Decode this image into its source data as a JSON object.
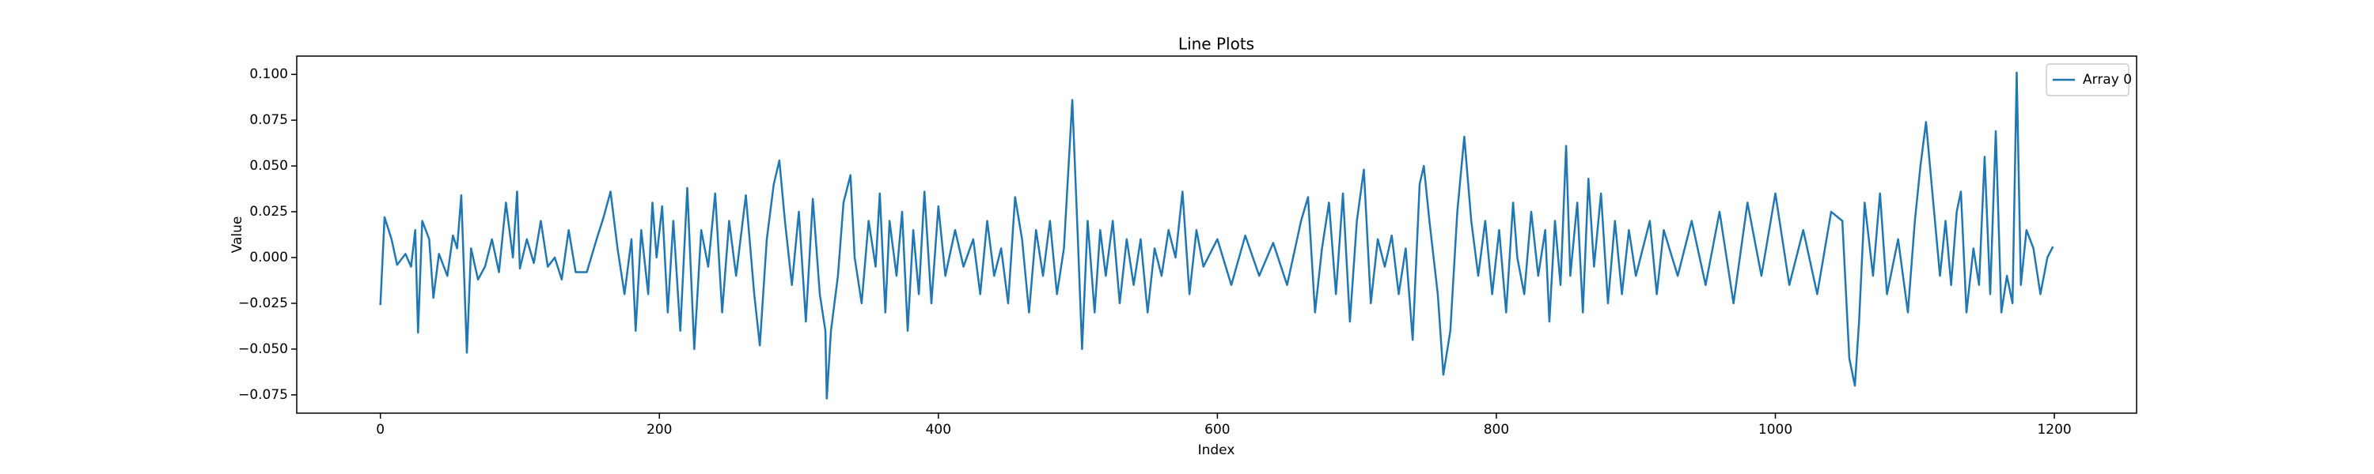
{
  "chart_data": {
    "type": "line",
    "title": "Line Plots",
    "xlabel": "Index",
    "ylabel": "Value",
    "x": [
      0,
      3,
      8,
      12,
      18,
      22,
      25,
      27,
      30,
      35,
      38,
      42,
      48,
      52,
      55,
      58,
      62,
      65,
      70,
      75,
      80,
      85,
      90,
      95,
      98,
      100,
      105,
      110,
      115,
      120,
      125,
      130,
      135,
      140,
      148,
      155,
      160,
      165,
      170,
      175,
      180,
      183,
      187,
      192,
      195,
      198,
      202,
      206,
      210,
      215,
      220,
      225,
      230,
      235,
      240,
      245,
      250,
      255,
      262,
      268,
      272,
      277,
      282,
      286,
      290,
      295,
      300,
      305,
      310,
      315,
      319,
      320,
      323,
      328,
      332,
      337,
      340,
      345,
      350,
      355,
      358,
      362,
      365,
      370,
      374,
      378,
      382,
      386,
      390,
      395,
      400,
      405,
      412,
      418,
      425,
      430,
      435,
      440,
      445,
      450,
      455,
      460,
      465,
      470,
      475,
      480,
      485,
      490,
      496,
      500,
      503,
      507,
      512,
      516,
      520,
      525,
      530,
      535,
      540,
      545,
      550,
      555,
      560,
      565,
      570,
      575,
      580,
      585,
      590,
      600,
      610,
      620,
      630,
      640,
      650,
      660,
      665,
      670,
      675,
      680,
      685,
      690,
      695,
      700,
      705,
      710,
      715,
      720,
      725,
      730,
      735,
      740,
      745,
      748,
      752,
      758,
      762,
      767,
      772,
      777,
      782,
      787,
      792,
      797,
      802,
      807,
      812,
      815,
      820,
      825,
      830,
      835,
      838,
      842,
      846,
      850,
      853,
      858,
      862,
      866,
      870,
      875,
      880,
      885,
      890,
      895,
      900,
      910,
      915,
      920,
      930,
      940,
      950,
      960,
      970,
      980,
      990,
      1000,
      1010,
      1020,
      1030,
      1040,
      1048,
      1053,
      1057,
      1060,
      1064,
      1070,
      1075,
      1080,
      1088,
      1095,
      1100,
      1104,
      1108,
      1112,
      1118,
      1122,
      1126,
      1130,
      1133,
      1137,
      1142,
      1146,
      1150,
      1154,
      1158,
      1162,
      1166,
      1170,
      1173,
      1176,
      1180,
      1185,
      1190,
      1195,
      1199
    ],
    "series": [
      {
        "name": "Array 0",
        "color": "#1f77b4",
        "values": [
          -0.026,
          0.022,
          0.01,
          -0.004,
          0.002,
          -0.005,
          0.015,
          -0.041,
          0.02,
          0.01,
          -0.022,
          0.002,
          -0.01,
          0.012,
          0.005,
          0.034,
          -0.052,
          0.005,
          -0.012,
          -0.005,
          0.01,
          -0.008,
          0.03,
          0.0,
          0.036,
          -0.006,
          0.01,
          -0.003,
          0.02,
          -0.005,
          0.0,
          -0.012,
          0.015,
          -0.008,
          -0.008,
          0.01,
          0.022,
          0.036,
          0.005,
          -0.02,
          0.01,
          -0.04,
          0.015,
          -0.02,
          0.03,
          0.0,
          0.028,
          -0.03,
          0.02,
          -0.04,
          0.038,
          -0.05,
          0.015,
          -0.005,
          0.035,
          -0.03,
          0.02,
          -0.01,
          0.034,
          -0.02,
          -0.048,
          0.01,
          0.04,
          0.053,
          0.02,
          -0.015,
          0.025,
          -0.035,
          0.032,
          -0.02,
          -0.04,
          -0.077,
          -0.04,
          -0.01,
          0.03,
          0.045,
          0.0,
          -0.025,
          0.02,
          -0.005,
          0.035,
          -0.03,
          0.02,
          -0.01,
          0.025,
          -0.04,
          0.015,
          -0.02,
          0.036,
          -0.025,
          0.028,
          -0.01,
          0.015,
          -0.005,
          0.01,
          -0.02,
          0.02,
          -0.01,
          0.005,
          -0.025,
          0.033,
          0.01,
          -0.03,
          0.015,
          -0.01,
          0.02,
          -0.02,
          0.005,
          0.086,
          0.01,
          -0.05,
          0.02,
          -0.03,
          0.015,
          -0.01,
          0.02,
          -0.025,
          0.01,
          -0.015,
          0.01,
          -0.03,
          0.005,
          -0.01,
          0.015,
          0.0,
          0.036,
          -0.02,
          0.015,
          -0.005,
          0.01,
          -0.015,
          0.012,
          -0.01,
          0.008,
          -0.015,
          0.02,
          0.033,
          -0.03,
          0.005,
          0.03,
          -0.02,
          0.035,
          -0.035,
          0.02,
          0.048,
          -0.025,
          0.01,
          -0.005,
          0.012,
          -0.02,
          0.005,
          -0.045,
          0.04,
          0.05,
          0.02,
          -0.02,
          -0.064,
          -0.04,
          0.025,
          0.066,
          0.02,
          -0.01,
          0.02,
          -0.02,
          0.015,
          -0.03,
          0.03,
          0.0,
          -0.02,
          0.025,
          -0.01,
          0.015,
          -0.035,
          0.02,
          -0.015,
          0.061,
          -0.01,
          0.03,
          -0.03,
          0.043,
          -0.005,
          0.035,
          -0.025,
          0.02,
          -0.02,
          0.015,
          -0.01,
          0.02,
          -0.02,
          0.015,
          -0.01,
          0.02,
          -0.015,
          0.025,
          -0.025,
          0.03,
          -0.01,
          0.035,
          -0.015,
          0.015,
          -0.02,
          0.025,
          0.02,
          -0.055,
          -0.07,
          -0.035,
          0.03,
          -0.01,
          0.035,
          -0.02,
          0.01,
          -0.03,
          0.02,
          0.05,
          0.074,
          0.04,
          -0.01,
          0.02,
          -0.015,
          0.025,
          0.036,
          -0.03,
          0.005,
          -0.015,
          0.055,
          -0.02,
          0.069,
          -0.03,
          -0.01,
          -0.025,
          0.101,
          -0.015,
          0.015,
          0.005,
          -0.02,
          0.0,
          0.006
        ]
      }
    ],
    "xlim": [
      -59.95,
      1258.95
    ],
    "ylim": [
      -0.085,
      0.11
    ],
    "xticks": [
      0,
      200,
      400,
      600,
      800,
      1000,
      1200
    ],
    "yticks": [
      {
        "value": -0.075,
        "label": "−0.075"
      },
      {
        "value": -0.05,
        "label": "−0.050"
      },
      {
        "value": -0.025,
        "label": "−0.025"
      },
      {
        "value": 0,
        "label": "0.000"
      },
      {
        "value": 0.025,
        "label": "0.025"
      },
      {
        "value": 0.05,
        "label": "0.050"
      },
      {
        "value": 0.075,
        "label": "0.075"
      },
      {
        "value": 0.1,
        "label": "0.100"
      }
    ],
    "legend": "upper right"
  }
}
